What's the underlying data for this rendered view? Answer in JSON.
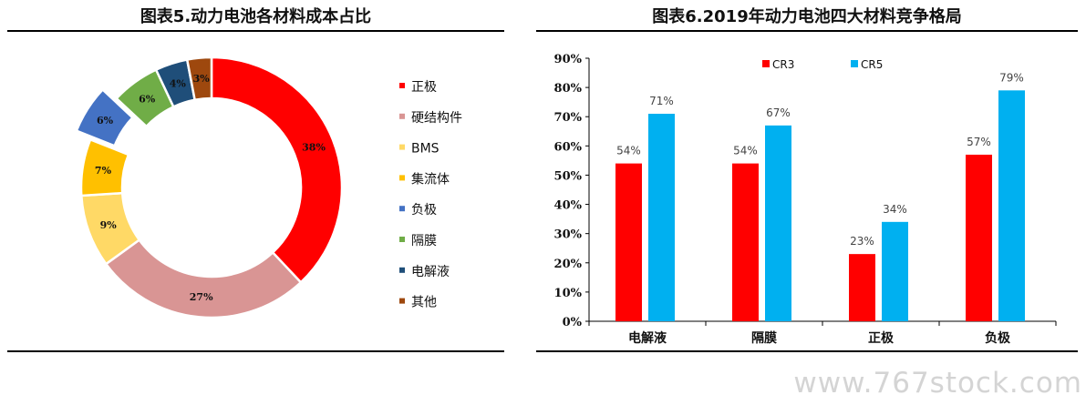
{
  "left_chart": {
    "title": "图表5.动力电池各材料成本占比",
    "chart_data": {
      "type": "pie",
      "variant": "donut",
      "title": "图表5.动力电池各材料成本占比",
      "legend_position": "right",
      "exploded_slice": "负极",
      "slices": [
        {
          "label": "正极",
          "value": 38,
          "display": "38%",
          "color": "#ff0000"
        },
        {
          "label": "硬结构件",
          "value": 27,
          "display": "27%",
          "color": "#d99594"
        },
        {
          "label": "BMS",
          "value": 9,
          "display": "9%",
          "color": "#ffd966"
        },
        {
          "label": "集流体",
          "value": 7,
          "display": "7%",
          "color": "#ffc000"
        },
        {
          "label": "负极",
          "value": 6,
          "display": "6%",
          "color": "#4472c4"
        },
        {
          "label": "隔膜",
          "value": 6,
          "display": "6%",
          "color": "#70ad47"
        },
        {
          "label": "电解液",
          "value": 4,
          "display": "4%",
          "color": "#1f4e79"
        },
        {
          "label": "其他",
          "value": 3,
          "display": "3%",
          "color": "#9e480e"
        }
      ]
    }
  },
  "right_chart": {
    "title": "图表6.2019年动力电池四大材料竞争格局",
    "chart_data": {
      "type": "bar",
      "title": "图表6.2019年动力电池四大材料竞争格局",
      "categories": [
        "电解液",
        "隔膜",
        "正极",
        "负极"
      ],
      "series": [
        {
          "name": "CR3",
          "values": [
            54,
            54,
            23,
            57
          ],
          "labels": [
            "54%",
            "54%",
            "23%",
            "57%"
          ],
          "color": "#ff0000"
        },
        {
          "name": "CR5",
          "values": [
            71,
            67,
            34,
            79
          ],
          "labels": [
            "71%",
            "67%",
            "34%",
            "79%"
          ],
          "color": "#00b0f0"
        }
      ],
      "ylim": [
        0,
        90
      ],
      "yticks": [
        "0%",
        "10%",
        "20%",
        "30%",
        "40%",
        "50%",
        "60%",
        "70%",
        "80%",
        "90%"
      ],
      "xlabel": "",
      "ylabel": "",
      "legend_position": "top",
      "grid": false
    }
  },
  "watermark": "www.767stock.com"
}
